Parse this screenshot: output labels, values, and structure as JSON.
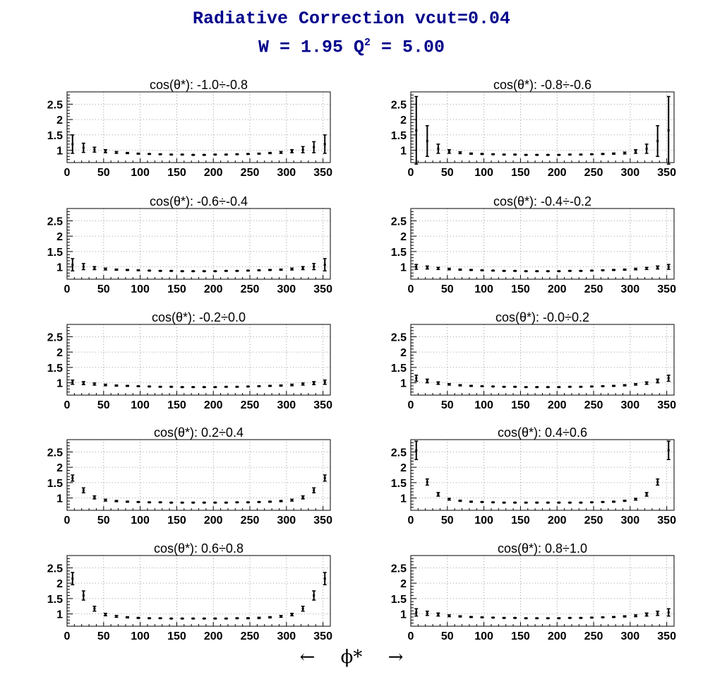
{
  "title": {
    "line1": "Radiative Correction  vcut=0.04",
    "line2_prefix": "W = 1.95  Q",
    "line2_sup": "2",
    "line2_suffix": " = 5.00"
  },
  "xaxis_label": {
    "left_arrow": "←",
    "symbol": "ϕ*",
    "right_arrow": "→"
  },
  "chart_data": [
    {
      "type": "scatter",
      "title": "cos(θ*): -1.0÷-0.8",
      "xlim": [
        0,
        360
      ],
      "ylim": [
        0.6,
        2.9
      ],
      "xticks": [
        0,
        50,
        100,
        150,
        200,
        250,
        300,
        350
      ],
      "yticks": [
        1,
        1.5,
        2,
        2.5
      ],
      "grid": true,
      "x": [
        7.5,
        22.5,
        37.5,
        52.5,
        67.5,
        82.5,
        97.5,
        112.5,
        127.5,
        142.5,
        157.5,
        172.5,
        187.5,
        202.5,
        217.5,
        232.5,
        247.5,
        262.5,
        277.5,
        292.5,
        307.5,
        322.5,
        337.5,
        352.5
      ],
      "y": [
        1.2,
        1.08,
        1.02,
        0.97,
        0.93,
        0.91,
        0.89,
        0.88,
        0.87,
        0.86,
        0.86,
        0.85,
        0.85,
        0.86,
        0.86,
        0.87,
        0.88,
        0.89,
        0.91,
        0.93,
        0.97,
        1.02,
        1.1,
        1.2
      ],
      "err": [
        0.3,
        0.15,
        0.08,
        0.05,
        0.03,
        0.02,
        0.015,
        0.01,
        0.01,
        0.01,
        0.01,
        0.01,
        0.01,
        0.01,
        0.01,
        0.01,
        0.01,
        0.015,
        0.02,
        0.03,
        0.05,
        0.1,
        0.18,
        0.3
      ]
    },
    {
      "type": "scatter",
      "title": "cos(θ*): -0.8÷-0.6",
      "xlim": [
        0,
        360
      ],
      "ylim": [
        0.6,
        2.9
      ],
      "xticks": [
        0,
        50,
        100,
        150,
        200,
        250,
        300,
        350
      ],
      "yticks": [
        1,
        1.5,
        2,
        2.5
      ],
      "grid": true,
      "x": [
        7.5,
        22.5,
        37.5,
        52.5,
        67.5,
        82.5,
        97.5,
        112.5,
        127.5,
        142.5,
        157.5,
        172.5,
        187.5,
        202.5,
        217.5,
        232.5,
        247.5,
        262.5,
        277.5,
        292.5,
        307.5,
        322.5,
        337.5,
        352.5
      ],
      "y": [
        1.65,
        1.3,
        1.05,
        0.96,
        0.92,
        0.89,
        0.88,
        0.87,
        0.86,
        0.86,
        0.85,
        0.85,
        0.85,
        0.85,
        0.86,
        0.86,
        0.87,
        0.88,
        0.89,
        0.91,
        0.96,
        1.05,
        1.3,
        1.65
      ],
      "err": [
        1.1,
        0.5,
        0.15,
        0.06,
        0.03,
        0.02,
        0.015,
        0.01,
        0.01,
        0.01,
        0.01,
        0.01,
        0.01,
        0.01,
        0.01,
        0.01,
        0.01,
        0.015,
        0.02,
        0.03,
        0.06,
        0.15,
        0.5,
        1.1
      ]
    },
    {
      "type": "scatter",
      "title": "cos(θ*): -0.6÷-0.4",
      "xlim": [
        0,
        360
      ],
      "ylim": [
        0.6,
        2.9
      ],
      "xticks": [
        0,
        50,
        100,
        150,
        200,
        250,
        300,
        350
      ],
      "yticks": [
        1,
        1.5,
        2,
        2.5
      ],
      "grid": true,
      "x": [
        7.5,
        22.5,
        37.5,
        52.5,
        67.5,
        82.5,
        97.5,
        112.5,
        127.5,
        142.5,
        157.5,
        172.5,
        187.5,
        202.5,
        217.5,
        232.5,
        247.5,
        262.5,
        277.5,
        292.5,
        307.5,
        322.5,
        337.5,
        352.5
      ],
      "y": [
        1.07,
        1.01,
        0.96,
        0.93,
        0.91,
        0.9,
        0.89,
        0.88,
        0.87,
        0.87,
        0.86,
        0.86,
        0.86,
        0.86,
        0.87,
        0.87,
        0.88,
        0.89,
        0.9,
        0.91,
        0.93,
        0.96,
        1.01,
        1.07
      ],
      "err": [
        0.2,
        0.1,
        0.05,
        0.03,
        0.02,
        0.015,
        0.01,
        0.01,
        0.01,
        0.01,
        0.01,
        0.01,
        0.01,
        0.01,
        0.01,
        0.01,
        0.01,
        0.01,
        0.015,
        0.02,
        0.03,
        0.05,
        0.1,
        0.2
      ]
    },
    {
      "type": "scatter",
      "title": "cos(θ*): -0.4÷-0.2",
      "xlim": [
        0,
        360
      ],
      "ylim": [
        0.6,
        2.9
      ],
      "xticks": [
        0,
        50,
        100,
        150,
        200,
        250,
        300,
        350
      ],
      "yticks": [
        1,
        1.5,
        2,
        2.5
      ],
      "grid": true,
      "x": [
        7.5,
        22.5,
        37.5,
        52.5,
        67.5,
        82.5,
        97.5,
        112.5,
        127.5,
        142.5,
        157.5,
        172.5,
        187.5,
        202.5,
        217.5,
        232.5,
        247.5,
        262.5,
        277.5,
        292.5,
        307.5,
        322.5,
        337.5,
        352.5
      ],
      "y": [
        1.0,
        0.98,
        0.95,
        0.93,
        0.91,
        0.9,
        0.89,
        0.88,
        0.87,
        0.87,
        0.86,
        0.86,
        0.86,
        0.86,
        0.87,
        0.87,
        0.88,
        0.89,
        0.9,
        0.91,
        0.93,
        0.95,
        0.98,
        1.0
      ],
      "err": [
        0.08,
        0.05,
        0.035,
        0.025,
        0.02,
        0.015,
        0.01,
        0.01,
        0.01,
        0.01,
        0.01,
        0.01,
        0.01,
        0.01,
        0.01,
        0.01,
        0.01,
        0.01,
        0.015,
        0.02,
        0.025,
        0.035,
        0.05,
        0.08
      ]
    },
    {
      "type": "scatter",
      "title": "cos(θ*): -0.2÷0.0",
      "xlim": [
        0,
        360
      ],
      "ylim": [
        0.6,
        2.9
      ],
      "xticks": [
        0,
        50,
        100,
        150,
        200,
        250,
        300,
        350
      ],
      "yticks": [
        1,
        1.5,
        2,
        2.5
      ],
      "grid": true,
      "x": [
        7.5,
        22.5,
        37.5,
        52.5,
        67.5,
        82.5,
        97.5,
        112.5,
        127.5,
        142.5,
        157.5,
        172.5,
        187.5,
        202.5,
        217.5,
        232.5,
        247.5,
        262.5,
        277.5,
        292.5,
        307.5,
        322.5,
        337.5,
        352.5
      ],
      "y": [
        1.02,
        0.99,
        0.96,
        0.93,
        0.91,
        0.9,
        0.89,
        0.88,
        0.87,
        0.87,
        0.86,
        0.86,
        0.86,
        0.86,
        0.87,
        0.87,
        0.88,
        0.89,
        0.9,
        0.91,
        0.93,
        0.96,
        0.99,
        1.02
      ],
      "err": [
        0.07,
        0.05,
        0.035,
        0.025,
        0.02,
        0.015,
        0.01,
        0.01,
        0.01,
        0.01,
        0.01,
        0.01,
        0.01,
        0.01,
        0.01,
        0.01,
        0.01,
        0.01,
        0.015,
        0.02,
        0.025,
        0.035,
        0.05,
        0.07
      ]
    },
    {
      "type": "scatter",
      "title": "cos(θ*): -0.0÷0.2",
      "xlim": [
        0,
        360
      ],
      "ylim": [
        0.6,
        2.9
      ],
      "xticks": [
        0,
        50,
        100,
        150,
        200,
        250,
        300,
        350
      ],
      "yticks": [
        1,
        1.5,
        2,
        2.5
      ],
      "grid": true,
      "x": [
        7.5,
        22.5,
        37.5,
        52.5,
        67.5,
        82.5,
        97.5,
        112.5,
        127.5,
        142.5,
        157.5,
        172.5,
        187.5,
        202.5,
        217.5,
        232.5,
        247.5,
        262.5,
        277.5,
        292.5,
        307.5,
        322.5,
        337.5,
        352.5
      ],
      "y": [
        1.15,
        1.06,
        0.99,
        0.95,
        0.92,
        0.9,
        0.89,
        0.88,
        0.87,
        0.87,
        0.86,
        0.86,
        0.86,
        0.86,
        0.87,
        0.87,
        0.88,
        0.89,
        0.9,
        0.92,
        0.95,
        0.99,
        1.06,
        1.15
      ],
      "err": [
        0.1,
        0.06,
        0.04,
        0.025,
        0.02,
        0.015,
        0.01,
        0.01,
        0.01,
        0.01,
        0.01,
        0.01,
        0.01,
        0.01,
        0.01,
        0.01,
        0.01,
        0.01,
        0.015,
        0.02,
        0.025,
        0.04,
        0.06,
        0.1
      ]
    },
    {
      "type": "scatter",
      "title": "cos(θ*): 0.2÷0.4",
      "xlim": [
        0,
        360
      ],
      "ylim": [
        0.6,
        2.9
      ],
      "xticks": [
        0,
        50,
        100,
        150,
        200,
        250,
        300,
        350
      ],
      "yticks": [
        1,
        1.5,
        2,
        2.5
      ],
      "grid": true,
      "x": [
        7.5,
        22.5,
        37.5,
        52.5,
        67.5,
        82.5,
        97.5,
        112.5,
        127.5,
        142.5,
        157.5,
        172.5,
        187.5,
        202.5,
        217.5,
        232.5,
        247.5,
        262.5,
        277.5,
        292.5,
        307.5,
        322.5,
        337.5,
        352.5
      ],
      "y": [
        1.65,
        1.25,
        1.02,
        0.93,
        0.9,
        0.88,
        0.87,
        0.86,
        0.86,
        0.85,
        0.85,
        0.85,
        0.85,
        0.85,
        0.85,
        0.86,
        0.86,
        0.87,
        0.88,
        0.9,
        0.93,
        1.02,
        1.25,
        1.65
      ],
      "err": [
        0.1,
        0.08,
        0.05,
        0.03,
        0.02,
        0.015,
        0.01,
        0.01,
        0.01,
        0.01,
        0.01,
        0.01,
        0.01,
        0.01,
        0.01,
        0.01,
        0.01,
        0.01,
        0.015,
        0.02,
        0.03,
        0.05,
        0.08,
        0.1
      ]
    },
    {
      "type": "scatter",
      "title": "cos(θ*): 0.4÷0.6",
      "xlim": [
        0,
        360
      ],
      "ylim": [
        0.6,
        2.9
      ],
      "xticks": [
        0,
        50,
        100,
        150,
        200,
        250,
        300,
        350
      ],
      "yticks": [
        1,
        1.5,
        2,
        2.5
      ],
      "grid": true,
      "x": [
        7.5,
        22.5,
        37.5,
        52.5,
        67.5,
        82.5,
        97.5,
        112.5,
        127.5,
        142.5,
        157.5,
        172.5,
        187.5,
        202.5,
        217.5,
        232.5,
        247.5,
        262.5,
        277.5,
        292.5,
        307.5,
        322.5,
        337.5,
        352.5
      ],
      "y": [
        2.55,
        1.52,
        1.12,
        0.96,
        0.91,
        0.88,
        0.87,
        0.86,
        0.85,
        0.85,
        0.85,
        0.85,
        0.85,
        0.85,
        0.85,
        0.85,
        0.86,
        0.87,
        0.88,
        0.91,
        0.96,
        1.12,
        1.52,
        2.55
      ],
      "err": [
        0.3,
        0.1,
        0.06,
        0.03,
        0.02,
        0.015,
        0.01,
        0.01,
        0.01,
        0.01,
        0.01,
        0.01,
        0.01,
        0.01,
        0.01,
        0.01,
        0.01,
        0.01,
        0.015,
        0.02,
        0.03,
        0.06,
        0.1,
        0.3
      ]
    },
    {
      "type": "scatter",
      "title": "cos(θ*): 0.6÷0.8",
      "xlim": [
        0,
        360
      ],
      "ylim": [
        0.6,
        2.9
      ],
      "xticks": [
        0,
        50,
        100,
        150,
        200,
        250,
        300,
        350
      ],
      "yticks": [
        1,
        1.5,
        2,
        2.5
      ],
      "grid": true,
      "x": [
        7.5,
        22.5,
        37.5,
        52.5,
        67.5,
        82.5,
        97.5,
        112.5,
        127.5,
        142.5,
        157.5,
        172.5,
        187.5,
        202.5,
        217.5,
        232.5,
        247.5,
        262.5,
        277.5,
        292.5,
        307.5,
        322.5,
        337.5,
        352.5
      ],
      "y": [
        2.15,
        1.6,
        1.17,
        0.98,
        0.92,
        0.89,
        0.87,
        0.86,
        0.86,
        0.85,
        0.85,
        0.85,
        0.85,
        0.85,
        0.85,
        0.86,
        0.86,
        0.87,
        0.89,
        0.92,
        0.98,
        1.17,
        1.6,
        2.15
      ],
      "err": [
        0.2,
        0.15,
        0.08,
        0.04,
        0.03,
        0.02,
        0.015,
        0.01,
        0.01,
        0.01,
        0.01,
        0.01,
        0.01,
        0.01,
        0.01,
        0.01,
        0.015,
        0.02,
        0.02,
        0.03,
        0.04,
        0.08,
        0.15,
        0.2
      ]
    },
    {
      "type": "scatter",
      "title": "cos(θ*): 0.8÷1.0",
      "xlim": [
        0,
        360
      ],
      "ylim": [
        0.6,
        2.9
      ],
      "xticks": [
        0,
        50,
        100,
        150,
        200,
        250,
        300,
        350
      ],
      "yticks": [
        1,
        1.5,
        2,
        2.5
      ],
      "grid": true,
      "x": [
        7.5,
        22.5,
        37.5,
        52.5,
        67.5,
        82.5,
        97.5,
        112.5,
        127.5,
        142.5,
        157.5,
        172.5,
        187.5,
        202.5,
        217.5,
        232.5,
        247.5,
        262.5,
        277.5,
        292.5,
        307.5,
        322.5,
        337.5,
        352.5
      ],
      "y": [
        1.05,
        1.02,
        0.98,
        0.94,
        0.92,
        0.9,
        0.89,
        0.88,
        0.87,
        0.87,
        0.86,
        0.86,
        0.86,
        0.86,
        0.87,
        0.87,
        0.88,
        0.89,
        0.9,
        0.92,
        0.94,
        0.98,
        1.02,
        1.05
      ],
      "err": [
        0.12,
        0.07,
        0.05,
        0.03,
        0.02,
        0.015,
        0.01,
        0.01,
        0.01,
        0.01,
        0.01,
        0.01,
        0.01,
        0.01,
        0.01,
        0.01,
        0.01,
        0.01,
        0.015,
        0.02,
        0.03,
        0.05,
        0.07,
        0.12
      ]
    }
  ]
}
